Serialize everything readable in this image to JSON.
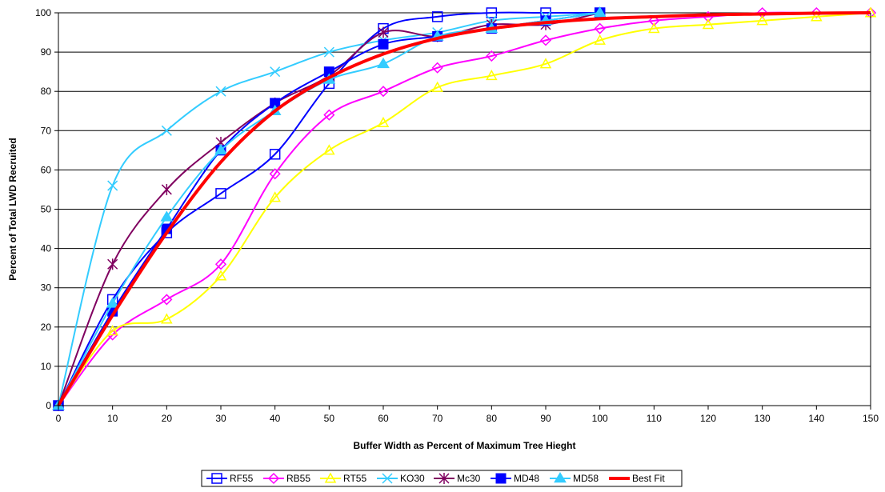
{
  "chart_data": {
    "type": "line",
    "title": "",
    "xlabel": "Buffer Width as Percent of Maximum Tree Hieght",
    "ylabel": "Percent of Total LWD Recruited",
    "xlim": [
      0,
      150
    ],
    "ylim": [
      0,
      100
    ],
    "x_ticks": [
      0,
      10,
      20,
      30,
      40,
      50,
      60,
      70,
      80,
      90,
      100,
      110,
      120,
      130,
      140,
      150
    ],
    "y_ticks": [
      0,
      10,
      20,
      30,
      40,
      50,
      60,
      70,
      80,
      90,
      100
    ],
    "grid": "horizontal",
    "legend_position": "bottom",
    "series": [
      {
        "name": "RF55",
        "color": "#0000ff",
        "marker": "open-square",
        "x": [
          0,
          10,
          20,
          30,
          40,
          50,
          60,
          70,
          80,
          90,
          100
        ],
        "y": [
          0,
          27,
          44,
          54,
          64,
          82,
          96,
          99,
          100,
          100,
          100
        ]
      },
      {
        "name": "RB55",
        "color": "#ff00ff",
        "marker": "open-diamond",
        "x": [
          0,
          10,
          20,
          30,
          40,
          50,
          60,
          70,
          80,
          90,
          100,
          110,
          120,
          130,
          140,
          150
        ],
        "y": [
          0,
          18,
          27,
          36,
          59,
          74,
          80,
          86,
          89,
          93,
          96,
          98,
          99,
          100,
          100,
          100
        ]
      },
      {
        "name": "RT55",
        "color": "#ffff00",
        "marker": "open-triangle",
        "x": [
          0,
          10,
          20,
          30,
          40,
          50,
          60,
          70,
          80,
          90,
          100,
          110,
          120,
          130,
          140,
          150
        ],
        "y": [
          0,
          19,
          22,
          33,
          53,
          65,
          72,
          81,
          84,
          87,
          93,
          96,
          97,
          98,
          99,
          100
        ]
      },
      {
        "name": "KO30",
        "color": "#33ccff",
        "marker": "x",
        "x": [
          0,
          10,
          20,
          30,
          40,
          50,
          60,
          70,
          80,
          90,
          100
        ],
        "y": [
          0,
          56,
          70,
          80,
          85,
          90,
          93,
          95,
          98,
          99,
          100
        ]
      },
      {
        "name": "Mc30",
        "color": "#800060",
        "marker": "star",
        "x": [
          0,
          10,
          20,
          30,
          40,
          50,
          60,
          70,
          80,
          90,
          100
        ],
        "y": [
          0,
          36,
          55,
          67,
          77,
          84,
          95,
          94,
          97,
          97,
          100
        ]
      },
      {
        "name": "MD48",
        "color": "#0000ff",
        "marker": "filled-square",
        "x": [
          0,
          10,
          20,
          30,
          40,
          50,
          60,
          70,
          80,
          90,
          100
        ],
        "y": [
          0,
          24,
          45,
          65,
          77,
          85,
          92,
          94,
          96,
          98,
          100
        ]
      },
      {
        "name": "MD58",
        "color": "#33ccff",
        "marker": "filled-triangle",
        "x": [
          0,
          10,
          20,
          30,
          40,
          50,
          60,
          70,
          80,
          90,
          100
        ],
        "y": [
          0,
          26,
          48,
          65,
          75,
          83,
          87,
          94,
          96,
          98,
          100
        ]
      },
      {
        "name": "Best Fit",
        "color": "#ff0000",
        "marker": "none",
        "x": [
          0,
          10,
          20,
          30,
          40,
          50,
          60,
          70,
          80,
          90,
          100,
          110,
          120,
          130,
          140,
          150
        ],
        "y": [
          0,
          23,
          44,
          62,
          75,
          83.5,
          89.5,
          93.5,
          96,
          97.5,
          98.5,
          99,
          99.5,
          99.7,
          99.9,
          100
        ]
      }
    ]
  }
}
